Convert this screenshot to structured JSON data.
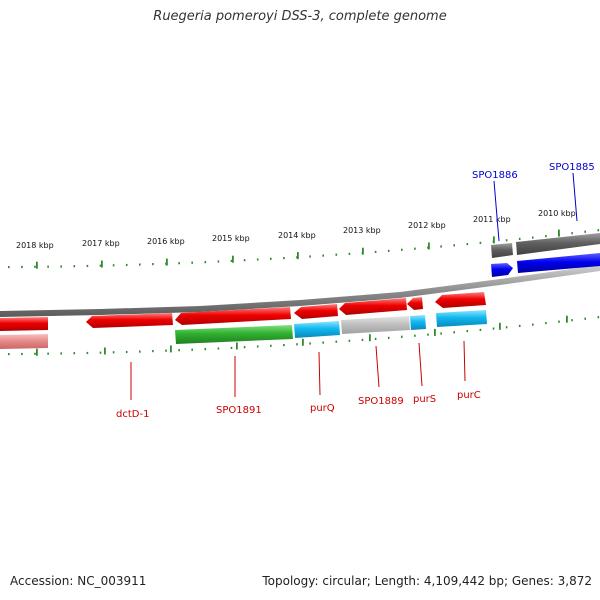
{
  "title": "Ruegeria pomeroyi DSS-3, complete genome",
  "footer": {
    "accession": "Accession: NC_003911",
    "summary": "Topology: circular; Length: 4,109,442 bp; Genes: 3,872"
  },
  "colors": {
    "background": "#ffffff",
    "backbone": "#8c8c8c",
    "tick": "#2e8b2e",
    "label_red": "#cc0000",
    "label_blue": "#0000cc",
    "gene_red": "#e00000",
    "gene_blue": "#0000ee",
    "gene_dark_gray": "#606060",
    "gene_green": "#30b030",
    "gene_cyan": "#10b8ee",
    "gene_light_gray": "#c0c0c0",
    "gene_pink": "#e88c8c"
  },
  "kbp_labels": [
    "2018 kbp",
    "2017 kbp",
    "2016 kbp",
    "2015 kbp",
    "2014 kbp",
    "2013 kbp",
    "2012 kbp",
    "2011 kbp",
    "2010 kbp"
  ],
  "gene_labels": [
    {
      "text": "SPO1886",
      "color": "blue"
    },
    {
      "text": "SPO1885",
      "color": "blue"
    },
    {
      "text": "dctD-1",
      "color": "red"
    },
    {
      "text": "SPO1891",
      "color": "red"
    },
    {
      "text": "purQ",
      "color": "red"
    },
    {
      "text": "SPO1889",
      "color": "red"
    },
    {
      "text": "purS",
      "color": "red"
    },
    {
      "text": "purC",
      "color": "red"
    }
  ]
}
